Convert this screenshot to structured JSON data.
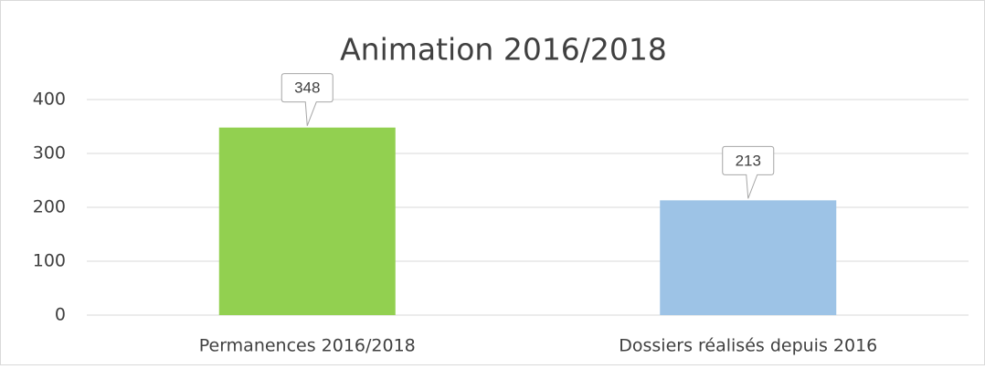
{
  "chart_data": {
    "type": "bar",
    "title": "Animation 2016/2018",
    "categories": [
      "Permanences 2016/2018",
      "Dossiers réalisés depuis 2016"
    ],
    "values": [
      348,
      213
    ],
    "colors": [
      "#92d050",
      "#9dc3e6"
    ],
    "ylim": [
      0,
      400
    ],
    "yticks": [
      0,
      100,
      200,
      300,
      400
    ],
    "grid": true
  }
}
